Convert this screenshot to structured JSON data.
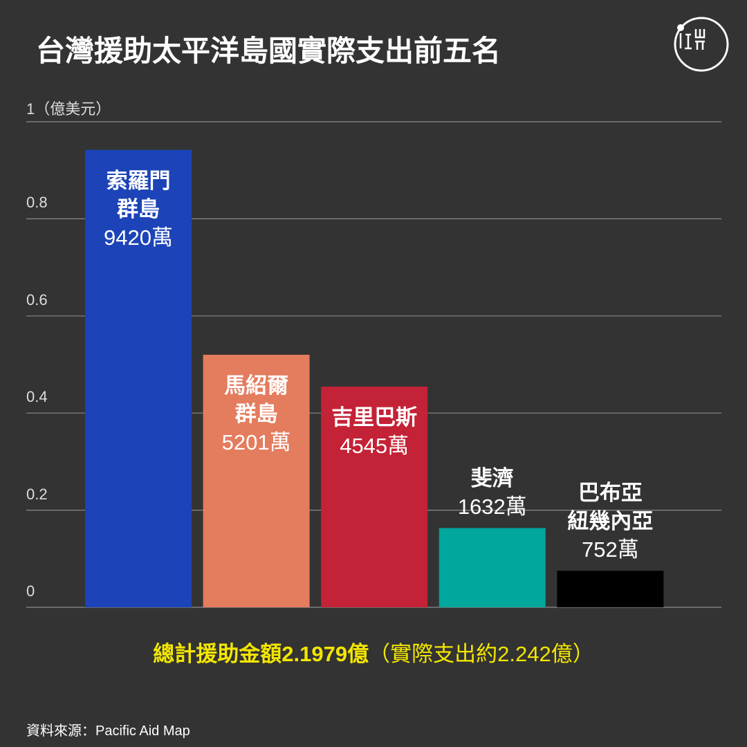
{
  "chart_data": {
    "type": "bar",
    "title": "台灣援助太平洋島國實際支出前五名",
    "categories": [
      "索羅門\n群島",
      "馬紹爾\n群島",
      "吉里巴斯",
      "斐濟",
      "巴布亞\n紐幾內亞"
    ],
    "values": [
      0.942,
      0.5201,
      0.4545,
      0.1632,
      0.0752
    ],
    "value_labels": [
      "9420萬",
      "5201萬",
      "4545萬",
      "1632萬",
      "752萬"
    ],
    "colors": [
      "#1c44b8",
      "#e47c5e",
      "#c42236",
      "#00a79d",
      "#000000"
    ],
    "ylim": [
      0,
      1
    ],
    "yticks": [
      0,
      0.2,
      0.4,
      0.6,
      0.8,
      {
        "value": 1,
        "label": "1（億美元）"
      }
    ],
    "grid": true,
    "annotations": {
      "total": "總計援助金額2.1979億",
      "note": "（實際支出約2.242億）"
    },
    "source": "資料來源：Pacific Aid Map"
  }
}
